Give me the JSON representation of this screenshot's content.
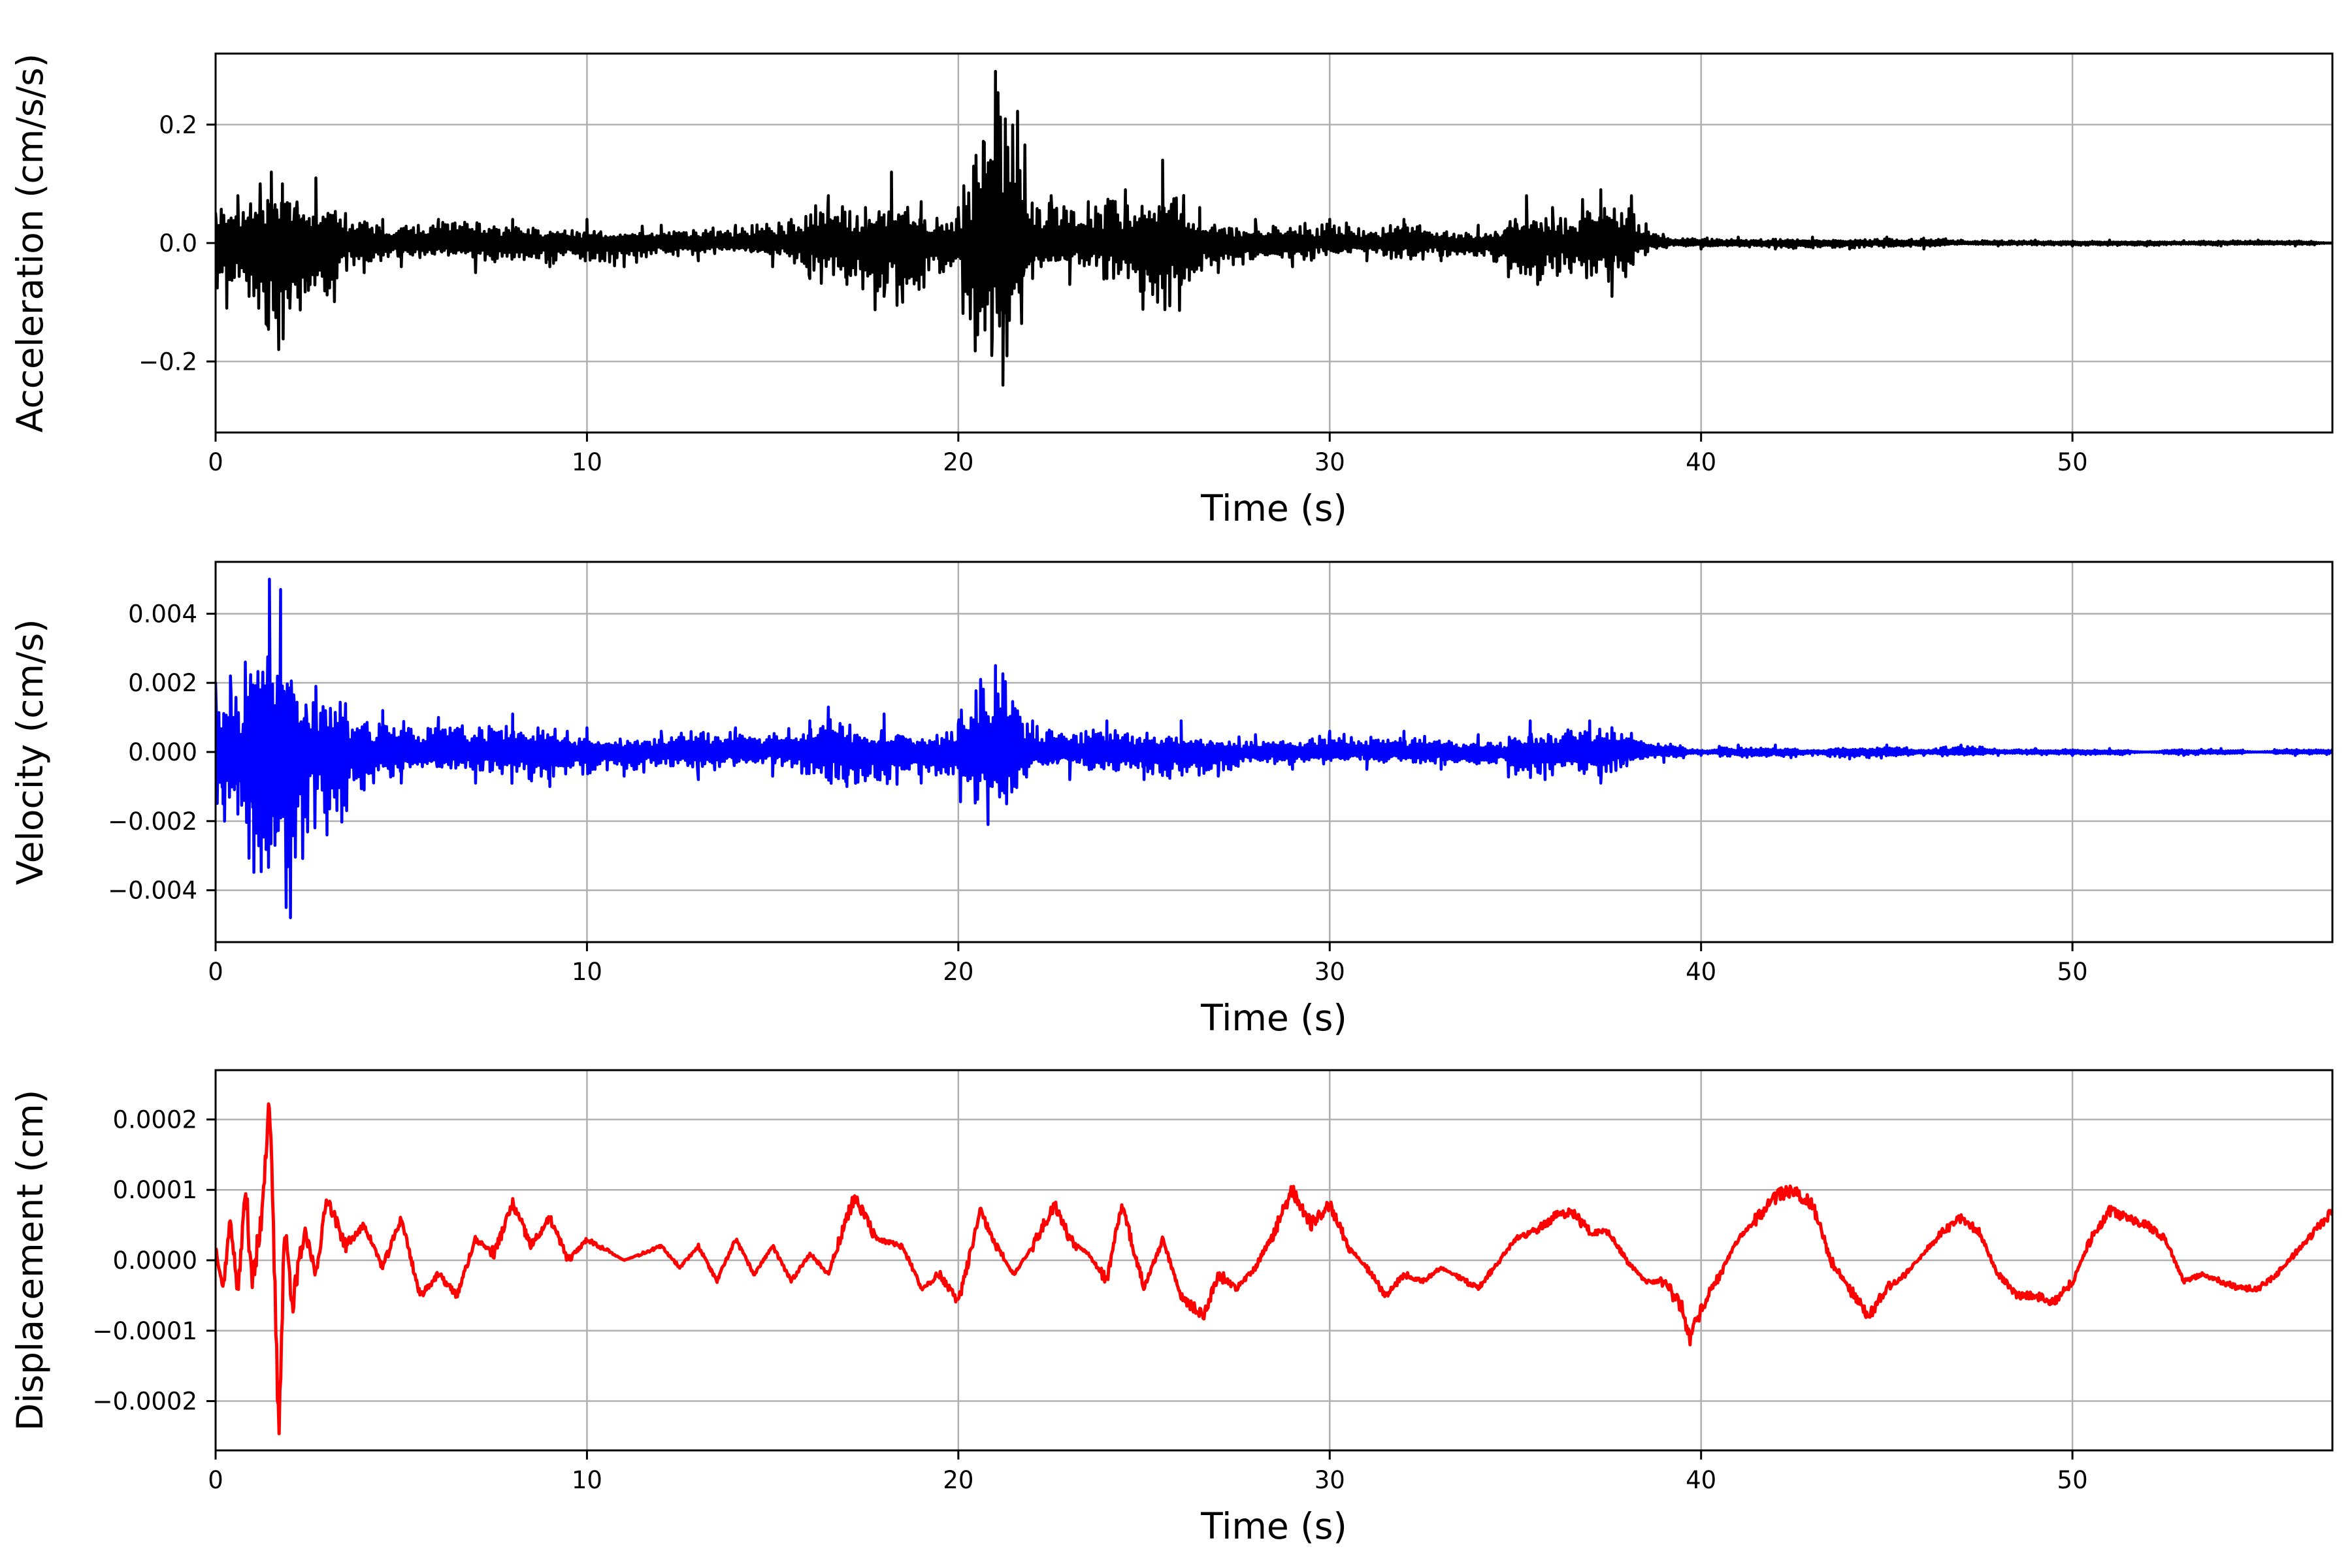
{
  "chart_data": [
    {
      "type": "line",
      "xlabel": "Time (s)",
      "ylabel": "Acceleration (cm/s/s)",
      "xlim": [
        0,
        57
      ],
      "ylim": [
        -0.32,
        0.32
      ],
      "xticks": [
        0,
        10,
        20,
        30,
        40,
        50
      ],
      "yticks": [
        -0.2,
        0.0,
        0.2
      ],
      "ytick_labels": [
        "−0.2",
        "0.0",
        "0.2"
      ],
      "grid": true,
      "series": [
        {
          "color": "#000000",
          "x": [
            0.0,
            0.3,
            0.6,
            0.9,
            1.2,
            1.4,
            1.5,
            1.7,
            1.8,
            2.0,
            2.2,
            2.5,
            2.7,
            3.0,
            3.5,
            4.0,
            4.5,
            5.0,
            6.0,
            7.0,
            8.0,
            9.0,
            10.0,
            11.0,
            12.0,
            13.0,
            14.0,
            15.0,
            15.5,
            16.0,
            16.5,
            17.0,
            17.5,
            18.0,
            18.2,
            18.5,
            19.0,
            19.5,
            20.0,
            20.4,
            20.7,
            20.9,
            21.0,
            21.2,
            21.5,
            22.0,
            22.5,
            23.0,
            23.5,
            24.0,
            24.5,
            25.0,
            25.5,
            26.0,
            26.5,
            27.0,
            28.0,
            29.0,
            30.0,
            31.0,
            32.0,
            33.0,
            34.0,
            34.5,
            35.0,
            35.3,
            35.6,
            36.0,
            36.5,
            37.0,
            37.3,
            37.6,
            38.0,
            38.5,
            39.0,
            40.0,
            41.0,
            42.0,
            43.0,
            44.0,
            45.0,
            46.0,
            47.0,
            48.0,
            49.0,
            50.0,
            51.0,
            52.0,
            53.0,
            54.0,
            55.0,
            56.0,
            57.0
          ],
          "y": [
            0.05,
            -0.11,
            0.08,
            -0.09,
            0.1,
            -0.14,
            0.12,
            -0.18,
            0.1,
            -0.11,
            0.06,
            -0.08,
            0.11,
            -0.06,
            0.05,
            -0.05,
            0.04,
            -0.04,
            0.04,
            -0.05,
            0.04,
            -0.04,
            0.04,
            -0.04,
            0.03,
            -0.03,
            0.03,
            -0.04,
            0.04,
            -0.06,
            0.08,
            -0.07,
            0.06,
            -0.09,
            0.12,
            -0.1,
            0.07,
            -0.05,
            0.06,
            -0.06,
            0.17,
            -0.19,
            0.29,
            -0.24,
            0.09,
            -0.06,
            0.08,
            -0.07,
            0.07,
            -0.06,
            0.09,
            -0.08,
            0.14,
            -0.07,
            0.06,
            -0.05,
            0.04,
            -0.04,
            0.04,
            -0.03,
            0.04,
            -0.03,
            0.03,
            -0.03,
            0.04,
            0.08,
            -0.07,
            0.06,
            -0.05,
            0.05,
            0.09,
            -0.09,
            0.04,
            -0.02,
            0.01,
            -0.01,
            0.01,
            -0.01,
            0.01,
            -0.01,
            0.01,
            -0.01,
            0.005,
            -0.005,
            0.005,
            -0.005,
            0.005,
            -0.005,
            0.004,
            -0.005,
            0.005,
            -0.005,
            0.0
          ]
        }
      ]
    },
    {
      "type": "line",
      "xlabel": "Time (s)",
      "ylabel": "Velocity (cm/s)",
      "xlim": [
        0,
        57
      ],
      "ylim": [
        -0.0055,
        0.0055
      ],
      "xticks": [
        0,
        10,
        20,
        30,
        40,
        50
      ],
      "yticks": [
        -0.004,
        -0.002,
        0.0,
        0.002,
        0.004
      ],
      "ytick_labels": [
        "−0.004",
        "−0.002",
        "0.000",
        "0.002",
        "0.004"
      ],
      "grid": true,
      "series": [
        {
          "color": "#0000ff",
          "x": [
            0.0,
            0.2,
            0.4,
            0.6,
            0.8,
            1.0,
            1.2,
            1.45,
            1.6,
            1.75,
            1.9,
            2.1,
            2.4,
            2.7,
            3.0,
            3.5,
            4.0,
            4.5,
            5.0,
            6.0,
            7.0,
            8.0,
            9.0,
            10.0,
            11.0,
            12.0,
            13.0,
            14.0,
            15.0,
            16.0,
            16.5,
            17.0,
            18.0,
            19.0,
            20.0,
            20.6,
            20.8,
            21.0,
            21.3,
            22.0,
            23.0,
            24.0,
            25.0,
            26.0,
            27.0,
            28.0,
            29.0,
            30.0,
            31.0,
            32.0,
            33.0,
            34.0,
            35.0,
            35.4,
            35.8,
            36.5,
            37.0,
            37.3,
            37.6,
            38.0,
            38.5,
            39.0,
            40.0,
            41.0,
            42.0,
            43.0,
            44.0,
            45.0,
            46.0,
            47.0,
            48.0,
            49.0,
            50.0,
            51.0,
            52.0,
            53.0,
            54.0,
            55.0,
            56.0,
            57.0
          ],
          "y": [
            0.002,
            -0.0015,
            0.0022,
            -0.0018,
            0.0026,
            -0.0016,
            0.0018,
            0.005,
            -0.0027,
            0.0047,
            -0.0045,
            0.0015,
            -0.0012,
            0.0019,
            -0.0024,
            0.0014,
            -0.0011,
            0.0012,
            -0.0009,
            0.001,
            -0.0009,
            0.0011,
            -0.001,
            0.0007,
            -0.0007,
            0.0006,
            -0.0008,
            0.0007,
            -0.0007,
            0.0009,
            0.0013,
            -0.001,
            0.0011,
            -0.0009,
            0.0008,
            0.0021,
            -0.0021,
            0.0025,
            -0.0015,
            0.0009,
            -0.0008,
            0.0009,
            -0.0008,
            0.0009,
            -0.0007,
            0.0005,
            -0.0005,
            0.0006,
            -0.0005,
            0.0006,
            -0.0005,
            0.0005,
            -0.0004,
            0.0009,
            -0.0008,
            0.0006,
            0.0009,
            -0.0009,
            0.0007,
            -0.0004,
            0.0002,
            -0.0003,
            -0.0001,
            0.0002,
            0.0002,
            -0.0001,
            -0.0002,
            0.0002,
            -0.0001,
            0.0002,
            -0.0001,
            0.0001,
            -0.0001,
            0.0001,
            0.0,
            -0.0001,
            0.0001,
            0.0,
            -0.0001,
            0.0001
          ]
        }
      ]
    },
    {
      "type": "line",
      "xlabel": "Time (s)",
      "ylabel": "Displacement (cm)",
      "xlim": [
        0,
        57
      ],
      "ylim": [
        -0.00027,
        0.00027
      ],
      "xticks": [
        0,
        10,
        20,
        30,
        40,
        50
      ],
      "yticks": [
        -0.0002,
        -0.0001,
        0.0,
        0.0001,
        0.0002
      ],
      "ytick_labels": [
        "−0.0002",
        "−0.0001",
        "0.0000",
        "0.0001",
        "0.0002"
      ],
      "grid": true,
      "series": [
        {
          "color": "#ff0000",
          "x": [
            0.0,
            0.2,
            0.4,
            0.6,
            0.8,
            1.0,
            1.2,
            1.45,
            1.6,
            1.7,
            1.85,
            2.1,
            2.4,
            2.7,
            3.0,
            3.5,
            4.0,
            4.5,
            5.0,
            5.5,
            6.0,
            6.5,
            7.0,
            7.5,
            8.0,
            8.5,
            9.0,
            9.5,
            10.0,
            11.0,
            12.0,
            12.5,
            13.0,
            13.5,
            14.0,
            14.5,
            15.0,
            15.5,
            16.0,
            16.5,
            16.8,
            17.2,
            17.8,
            18.5,
            19.0,
            19.5,
            20.0,
            20.6,
            21.0,
            21.5,
            22.0,
            22.6,
            23.0,
            23.5,
            24.0,
            24.4,
            25.0,
            25.5,
            26.0,
            26.6,
            27.0,
            27.5,
            28.0,
            28.5,
            29.0,
            29.5,
            30.0,
            30.5,
            31.0,
            31.5,
            32.0,
            32.5,
            33.0,
            34.0,
            35.0,
            35.5,
            36.0,
            36.5,
            37.0,
            37.5,
            38.0,
            38.5,
            39.0,
            39.5,
            39.7,
            40.0,
            40.5,
            41.0,
            42.0,
            42.5,
            43.0,
            43.5,
            44.0,
            44.5,
            45.0,
            45.5,
            46.0,
            46.5,
            47.0,
            47.5,
            48.0,
            48.5,
            49.0,
            49.5,
            50.0,
            50.5,
            51.0,
            51.5,
            52.0,
            52.5,
            53.0,
            53.5,
            54.0,
            54.5,
            55.0,
            55.5,
            56.0,
            56.5,
            57.0
          ],
          "y": [
            2e-05,
            -4e-05,
            6e-05,
            -5e-05,
            0.0001,
            -3e-05,
            4e-05,
            0.000235,
            -5e-05,
            -0.00025,
            4e-05,
            -6e-05,
            4e-05,
            -2e-05,
            9e-05,
            2e-05,
            5e-05,
            -1e-05,
            6e-05,
            -5e-05,
            -2e-05,
            -5e-05,
            3e-05,
            1e-05,
            8e-05,
            2e-05,
            6e-05,
            0.0,
            3e-05,
            0.0,
            2e-05,
            -1e-05,
            2e-05,
            -3e-05,
            3e-05,
            -2e-05,
            2e-05,
            -3e-05,
            1e-05,
            -2e-05,
            3e-05,
            9e-05,
            3e-05,
            2e-05,
            -4e-05,
            -2e-05,
            -6e-05,
            7e-05,
            2e-05,
            -2e-05,
            2e-05,
            8e-05,
            3e-05,
            1e-05,
            -3e-05,
            8e-05,
            -4e-05,
            3e-05,
            -5e-05,
            -8e-05,
            -2e-05,
            -4e-05,
            -1e-05,
            4e-05,
            0.0001,
            5e-05,
            8e-05,
            2e-05,
            -1e-05,
            -5e-05,
            -2e-05,
            -3e-05,
            -1e-05,
            -4e-05,
            3e-05,
            4e-05,
            6e-05,
            7e-05,
            4e-05,
            4e-05,
            0.0,
            -3e-05,
            -3e-05,
            -7e-05,
            -0.00011,
            -7e-05,
            -2e-05,
            3e-05,
            9e-05,
            0.0001,
            8e-05,
            0.0,
            -4e-05,
            -8e-05,
            -4e-05,
            -2e-05,
            1e-05,
            4e-05,
            6e-05,
            4e-05,
            -2e-05,
            -5e-05,
            -5e-05,
            -6e-05,
            -3e-05,
            3e-05,
            7e-05,
            6e-05,
            5e-05,
            3e-05,
            -3e-05,
            -2e-05,
            -3e-05,
            -4e-05,
            -4e-05,
            -2e-05,
            1e-05,
            4e-05,
            7e-05
          ]
        }
      ]
    }
  ]
}
